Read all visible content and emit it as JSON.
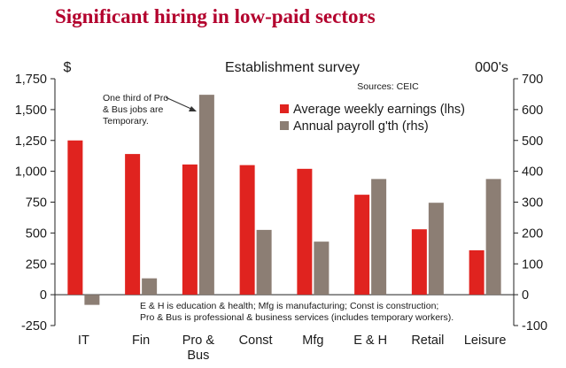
{
  "slide_title": "Significant hiring in low-paid sectors",
  "chart_data": {
    "type": "bar",
    "title": "Establishment survey",
    "source": "Sources: CEIC",
    "left_unit": "$",
    "right_unit": "000's",
    "categories": [
      "IT",
      "Fin",
      "Pro &\nBus",
      "Const",
      "Mfg",
      "E & H",
      "Retail",
      "Leisure"
    ],
    "series": [
      {
        "name": "Average weekly earnings (lhs)",
        "axis": "left",
        "color": "#e0231f",
        "values": [
          1250,
          1140,
          1055,
          1050,
          1020,
          810,
          530,
          360
        ]
      },
      {
        "name": "Annual payroll g'th (rhs)",
        "axis": "right",
        "color": "#8c7e74",
        "values": [
          -33,
          53,
          648,
          210,
          172,
          375,
          298,
          375
        ]
      }
    ],
    "left_axis": {
      "min": -250,
      "max": 1750,
      "ticks": [
        -250,
        0,
        250,
        500,
        750,
        1000,
        1250,
        1500,
        1750
      ],
      "tick_labels": [
        "-250",
        "0",
        "250",
        "500",
        "750",
        "1,000",
        "1,250",
        "1,500",
        "1,750"
      ]
    },
    "right_axis": {
      "min": -100,
      "max": 700,
      "ticks": [
        -100,
        0,
        100,
        200,
        300,
        400,
        500,
        600,
        700
      ],
      "tick_labels": [
        "-100",
        "0",
        "100",
        "200",
        "300",
        "400",
        "500",
        "600",
        "700"
      ]
    },
    "legend_position": "top-right",
    "grid": false,
    "annotations": {
      "callout": [
        "One third of Pro",
        "& Bus jobs are",
        "Temporary."
      ],
      "footnote": [
        "E & H is education & health; Mfg is manufacturing; Const is construction;",
        "Pro & Bus is professional & business services (includes temporary workers)."
      ]
    }
  }
}
